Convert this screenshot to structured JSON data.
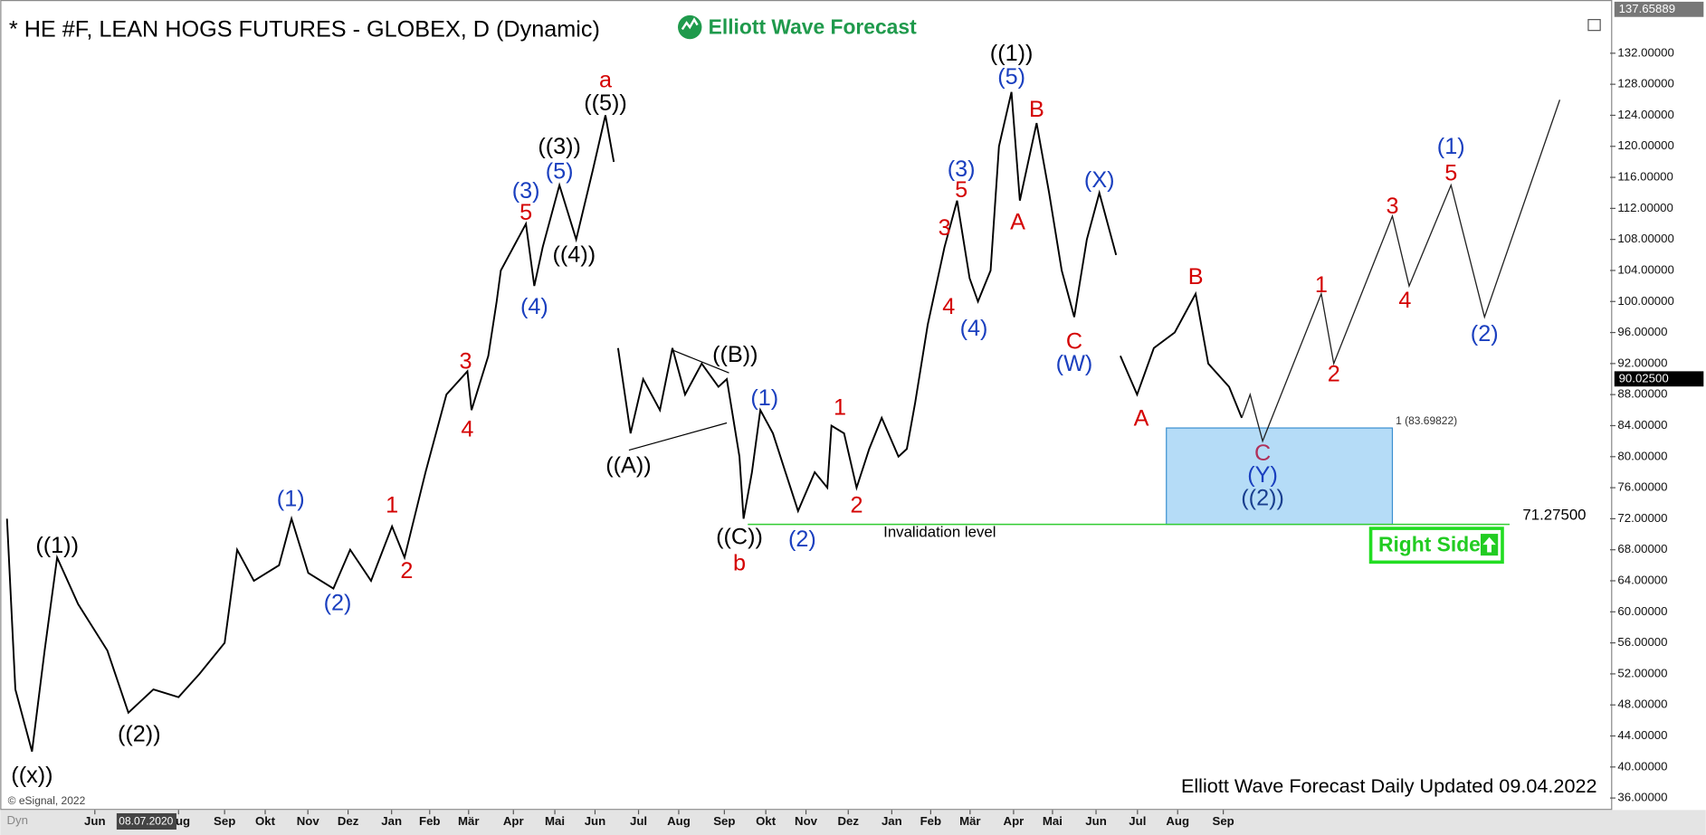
{
  "chart_data": {
    "type": "line",
    "title": "* HE #F, LEAN HOGS FUTURES - GLOBEX, D (Dynamic)",
    "brand": "Elliott Wave Forecast",
    "footer": "Elliott Wave Forecast Daily Updated 09.04.2022",
    "copyright": "© eSignal, 2022",
    "corner_label": "Dyn",
    "cursor_date": "08.07.2020",
    "badge": "Right Side",
    "xlim": [
      -2.13,
      36.2
    ],
    "ylim": [
      34.4,
      137.6
    ],
    "xticks": [
      {
        "value": 0,
        "label": "Jun"
      },
      {
        "value": 2,
        "label": "Aug"
      },
      {
        "value": 3.1,
        "label": "Sep"
      },
      {
        "value": 4.07,
        "label": "Okt"
      },
      {
        "value": 5.09,
        "label": "Nov"
      },
      {
        "value": 6.05,
        "label": "Dez"
      },
      {
        "value": 7.09,
        "label": "Jan"
      },
      {
        "value": 8.0,
        "label": "Feb"
      },
      {
        "value": 8.93,
        "label": "Mär"
      },
      {
        "value": 10.0,
        "label": "Apr"
      },
      {
        "value": 10.99,
        "label": "Mai"
      },
      {
        "value": 11.95,
        "label": "Jun"
      },
      {
        "value": 12.99,
        "label": "Jul"
      },
      {
        "value": 13.95,
        "label": "Aug"
      },
      {
        "value": 15.04,
        "label": "Sep"
      },
      {
        "value": 16.03,
        "label": "Okt"
      },
      {
        "value": 16.99,
        "label": "Nov"
      },
      {
        "value": 18.0,
        "label": "Dez"
      },
      {
        "value": 19.04,
        "label": "Jan"
      },
      {
        "value": 19.97,
        "label": "Feb"
      },
      {
        "value": 20.91,
        "label": "Mär"
      },
      {
        "value": 21.95,
        "label": "Apr"
      },
      {
        "value": 22.88,
        "label": "Mai"
      },
      {
        "value": 23.92,
        "label": "Jun"
      },
      {
        "value": 24.91,
        "label": "Jul"
      },
      {
        "value": 25.87,
        "label": "Aug"
      },
      {
        "value": 26.96,
        "label": "Sep"
      }
    ],
    "yticks": [
      {
        "value": 36,
        "label": "36.00000"
      },
      {
        "value": 40,
        "label": "40.00000"
      },
      {
        "value": 44,
        "label": "44.00000"
      },
      {
        "value": 48,
        "label": "48.00000"
      },
      {
        "value": 52,
        "label": "52.00000"
      },
      {
        "value": 56,
        "label": "56.00000"
      },
      {
        "value": 60,
        "label": "60.00000"
      },
      {
        "value": 64,
        "label": "64.00000"
      },
      {
        "value": 68,
        "label": "68.00000"
      },
      {
        "value": 72,
        "label": "72.00000"
      },
      {
        "value": 76,
        "label": "76.00000"
      },
      {
        "value": 80,
        "label": "80.00000"
      },
      {
        "value": 84,
        "label": "84.00000"
      },
      {
        "value": 88,
        "label": "88.00000"
      },
      {
        "value": 92,
        "label": "92.00000"
      },
      {
        "value": 96,
        "label": "96.00000"
      },
      {
        "value": 100,
        "label": "100.00000"
      },
      {
        "value": 104,
        "label": "104.00000"
      },
      {
        "value": 108,
        "label": "108.00000"
      },
      {
        "value": 112,
        "label": "112.00000"
      },
      {
        "value": 116,
        "label": "116.00000"
      },
      {
        "value": 120,
        "label": "120.00000"
      },
      {
        "value": 124,
        "label": "124.00000"
      },
      {
        "value": 128,
        "label": "128.00000"
      },
      {
        "value": 132,
        "label": "132.00000"
      }
    ],
    "axis_high": {
      "value": 137.65889,
      "label": "137.65889"
    },
    "last_price": {
      "value": 90.025,
      "label": "90.02500"
    },
    "series": [
      {
        "name": "price",
        "color": "#000000",
        "x": [
          -2.1,
          -1.9,
          -1.5,
          -1.2,
          -0.9,
          -0.4,
          0.3,
          0.8,
          1.4,
          2.0,
          2.5,
          3.1,
          3.4,
          3.8,
          4.4,
          4.7,
          5.1,
          5.7,
          6.1,
          6.6,
          7.1,
          7.4,
          7.9,
          8.4,
          8.9,
          9.0,
          9.4,
          9.6,
          9.7,
          10.3,
          10.5,
          10.7,
          11.1,
          11.5,
          11.9,
          12.2,
          12.4,
          12.45,
          12.5,
          12.8,
          13.1,
          13.5,
          13.8,
          14.1,
          14.5,
          14.9,
          15.1,
          15.4,
          15.5,
          15.7,
          15.9,
          16.2,
          16.5,
          16.8,
          17.2,
          17.5,
          17.6,
          17.9,
          18.2,
          18.5,
          18.8,
          19.2,
          19.4,
          19.6,
          19.9,
          20.3,
          20.6,
          20.9,
          21.1,
          21.4,
          21.6,
          21.9,
          22.1,
          22.5,
          22.8,
          23.1,
          23.4,
          23.7,
          24.0,
          24.4,
          24.45,
          24.5,
          24.9,
          25.3,
          25.8,
          26.3,
          26.6,
          27.1,
          27.4
        ],
        "values": [
          72,
          50,
          42,
          55,
          67,
          61,
          55,
          47,
          50,
          49,
          52,
          56,
          68,
          64,
          66,
          72,
          65,
          63,
          68,
          64,
          71,
          67,
          78,
          88,
          91,
          86,
          93,
          100,
          104,
          110,
          102,
          107,
          115,
          108,
          117,
          124,
          118,
          null,
          94,
          83,
          90,
          86,
          94,
          88,
          92,
          89,
          90,
          80,
          72,
          78,
          86,
          83,
          78,
          73,
          78,
          76,
          84,
          83,
          76,
          81,
          85,
          80,
          81,
          87,
          97,
          107,
          113,
          103,
          100,
          104,
          120,
          127,
          113,
          123,
          114,
          104,
          98,
          108,
          114,
          106,
          null,
          93,
          88,
          94,
          96,
          101,
          92,
          89,
          85
        ]
      },
      {
        "name": "projection",
        "color": "#222222",
        "x": [
          27.4,
          27.6,
          27.9,
          29.3,
          29.6,
          31.0,
          31.4,
          32.4,
          33.2,
          35.0
        ],
        "values": [
          85,
          88,
          82,
          101,
          92,
          111,
          102,
          115,
          98,
          126
        ]
      }
    ],
    "target_zone": {
      "label": "1 (83.69822)",
      "top": 83.69822,
      "bottom": 71.275,
      "x": [
        25.6,
        31.0
      ],
      "color": "#b5dcf7"
    },
    "invalidation": {
      "label": "Invalidation level",
      "value": 71.275,
      "value_label": "71.27500",
      "x": [
        15.6,
        33.8
      ],
      "color": "#33cc33"
    },
    "annotations": [
      {
        "text": "((x))",
        "x": -1.5,
        "y": 38.8,
        "color": "#000000"
      },
      {
        "text": "((1))",
        "x": -0.9,
        "y": 68.4,
        "color": "#000000"
      },
      {
        "text": "((2))",
        "x": 1.06,
        "y": 44.1,
        "color": "#000000"
      },
      {
        "text": "(1)",
        "x": 4.68,
        "y": 74.4,
        "color": "#1a3fbf"
      },
      {
        "text": "(2)",
        "x": 5.8,
        "y": 61.0,
        "color": "#1a3fbf"
      },
      {
        "text": "1",
        "x": 7.1,
        "y": 73.6,
        "color": "#d40000"
      },
      {
        "text": "2",
        "x": 7.45,
        "y": 65.1,
        "color": "#d40000"
      },
      {
        "text": "3",
        "x": 8.86,
        "y": 92.1,
        "color": "#d40000"
      },
      {
        "text": "4",
        "x": 8.9,
        "y": 83.4,
        "color": "#d40000"
      },
      {
        "text": "5",
        "x": 10.3,
        "y": 111.3,
        "color": "#d40000"
      },
      {
        "text": "(3)",
        "x": 10.3,
        "y": 114.1,
        "color": "#1a3fbf"
      },
      {
        "text": "(4)",
        "x": 10.5,
        "y": 99.2,
        "color": "#1a3fbf"
      },
      {
        "text": "(5)",
        "x": 11.1,
        "y": 116.6,
        "color": "#1a3fbf"
      },
      {
        "text": "((3))",
        "x": 11.1,
        "y": 119.8,
        "color": "#000000"
      },
      {
        "text": "((4))",
        "x": 11.45,
        "y": 105.9,
        "color": "#000000"
      },
      {
        "text": "((5))",
        "x": 12.2,
        "y": 125.4,
        "color": "#000000"
      },
      {
        "text": "a",
        "x": 12.2,
        "y": 128.4,
        "color": "#d40000"
      },
      {
        "text": "((A))",
        "x": 12.75,
        "y": 78.7,
        "color": "#000000"
      },
      {
        "text": "((B))",
        "x": 15.3,
        "y": 93.0,
        "color": "#000000"
      },
      {
        "text": "((C))",
        "x": 15.4,
        "y": 69.5,
        "color": "#000000"
      },
      {
        "text": "b",
        "x": 15.4,
        "y": 66.1,
        "color": "#d40000"
      },
      {
        "text": "(1)",
        "x": 16.0,
        "y": 87.4,
        "color": "#1a3fbf"
      },
      {
        "text": "(2)",
        "x": 16.9,
        "y": 69.2,
        "color": "#1a3fbf"
      },
      {
        "text": "1",
        "x": 17.8,
        "y": 86.2,
        "color": "#d40000"
      },
      {
        "text": "2",
        "x": 18.2,
        "y": 73.6,
        "color": "#d40000"
      },
      {
        "text": "3",
        "x": 20.3,
        "y": 109.3,
        "color": "#d40000"
      },
      {
        "text": "4",
        "x": 20.4,
        "y": 99.2,
        "color": "#d40000"
      },
      {
        "text": "5",
        "x": 20.7,
        "y": 114.2,
        "color": "#d40000"
      },
      {
        "text": "(3)",
        "x": 20.7,
        "y": 116.9,
        "color": "#1a3fbf"
      },
      {
        "text": "(4)",
        "x": 21.0,
        "y": 96.4,
        "color": "#1a3fbf"
      },
      {
        "text": "((1))",
        "x": 21.9,
        "y": 131.8,
        "color": "#000000"
      },
      {
        "text": "(5)",
        "x": 21.9,
        "y": 128.8,
        "color": "#1a3fbf"
      },
      {
        "text": "A",
        "x": 22.05,
        "y": 110.1,
        "color": "#d40000"
      },
      {
        "text": "B",
        "x": 22.5,
        "y": 124.6,
        "color": "#d40000"
      },
      {
        "text": "C",
        "x": 23.4,
        "y": 94.7,
        "color": "#d40000"
      },
      {
        "text": "(W)",
        "x": 23.4,
        "y": 91.8,
        "color": "#1a3fbf"
      },
      {
        "text": "(X)",
        "x": 24.0,
        "y": 115.5,
        "color": "#1a3fbf"
      },
      {
        "text": "A",
        "x": 25.0,
        "y": 84.8,
        "color": "#d40000"
      },
      {
        "text": "B",
        "x": 26.3,
        "y": 103.0,
        "color": "#d40000"
      },
      {
        "text": "C",
        "x": 27.9,
        "y": 80.3,
        "color": "#b0305a"
      },
      {
        "text": "(Y)",
        "x": 27.9,
        "y": 77.5,
        "color": "#1a3fbf"
      },
      {
        "text": "((2))",
        "x": 27.9,
        "y": 74.5,
        "color": "#1a3f8f"
      },
      {
        "text": "1",
        "x": 29.3,
        "y": 102.0,
        "color": "#d40000"
      },
      {
        "text": "2",
        "x": 29.6,
        "y": 90.5,
        "color": "#d40000"
      },
      {
        "text": "3",
        "x": 31.0,
        "y": 112.1,
        "color": "#d40000"
      },
      {
        "text": "4",
        "x": 31.3,
        "y": 100.0,
        "color": "#d40000"
      },
      {
        "text": "5",
        "x": 32.4,
        "y": 116.4,
        "color": "#d40000"
      },
      {
        "text": "(1)",
        "x": 32.4,
        "y": 119.8,
        "color": "#1a3fbf"
      },
      {
        "text": "(2)",
        "x": 33.2,
        "y": 95.7,
        "color": "#1a3fbf"
      }
    ]
  }
}
